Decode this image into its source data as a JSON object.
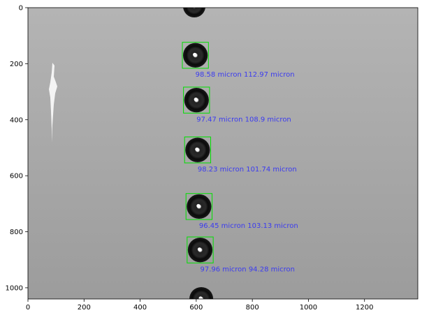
{
  "image_plot": {
    "xlim": [
      0,
      1390
    ],
    "ylim": [
      1040,
      0
    ],
    "x_ticks": [
      "0",
      "200",
      "400",
      "600",
      "800",
      "1000",
      "1200"
    ],
    "y_ticks": [
      "0",
      "200",
      "400",
      "600",
      "800",
      "1000"
    ],
    "background_color": "#a9a9a9",
    "bbox_color": "#00e000",
    "label_color": "#3b3bf0",
    "droplets": [
      {
        "x": 593,
        "y": -5,
        "d": 80,
        "boxed": false,
        "label": ""
      },
      {
        "x": 597,
        "y": 170,
        "d": 88,
        "boxed": true,
        "label": "98.58 micron 112.97 micron"
      },
      {
        "x": 601,
        "y": 330,
        "d": 88,
        "boxed": true,
        "label": "97.47 micron 108.9 micron"
      },
      {
        "x": 605,
        "y": 508,
        "d": 88,
        "boxed": true,
        "label": "98.23 micron 101.74 micron"
      },
      {
        "x": 610,
        "y": 710,
        "d": 88,
        "boxed": true,
        "label": "96.45 micron 103.13 micron"
      },
      {
        "x": 614,
        "y": 865,
        "d": 88,
        "boxed": true,
        "label": "97.96 micron 94.28 micron"
      },
      {
        "x": 618,
        "y": 1040,
        "d": 85,
        "boxed": false,
        "label": ""
      }
    ]
  }
}
